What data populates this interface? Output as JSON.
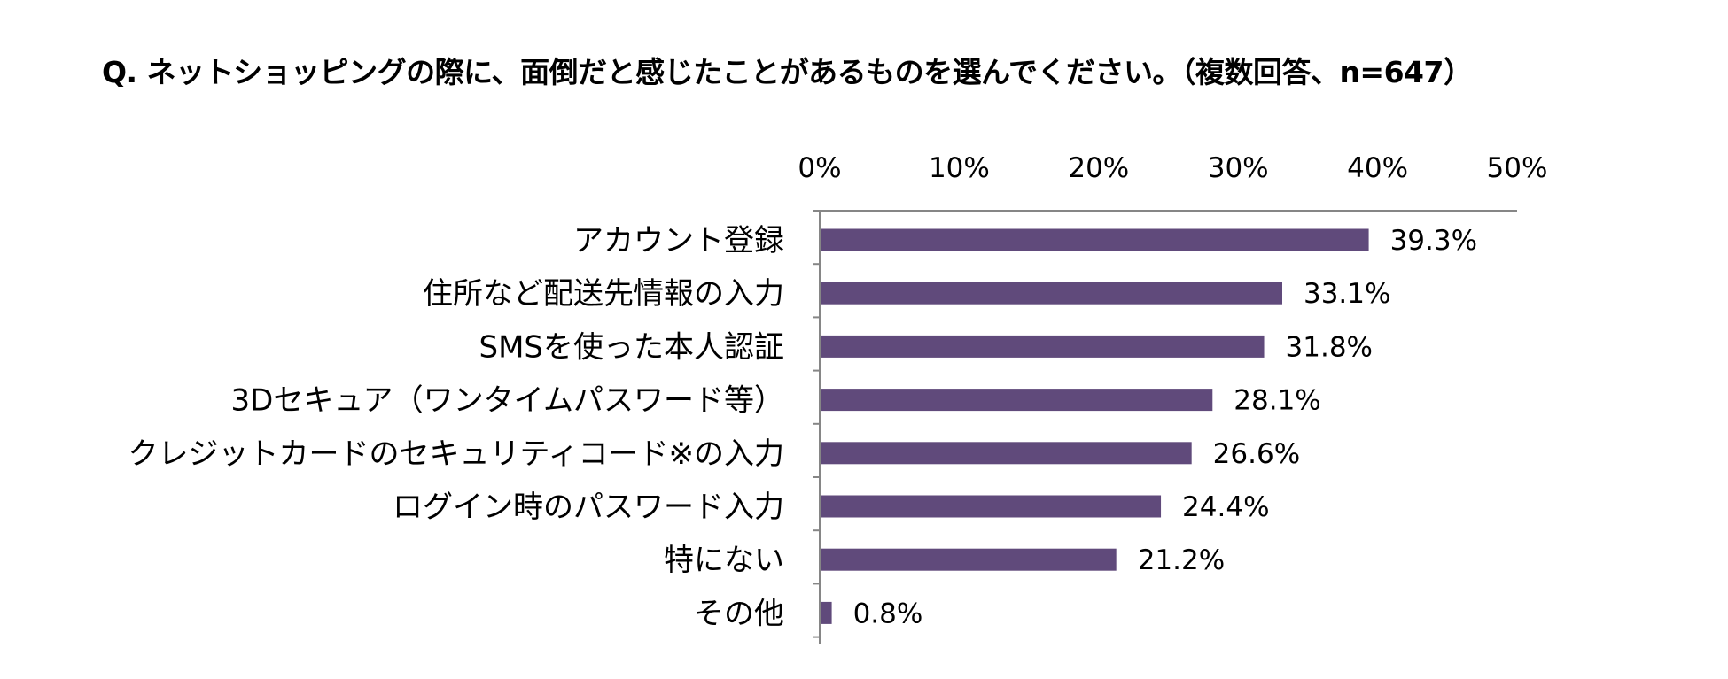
{
  "chart_data": {
    "type": "bar",
    "orientation": "horizontal",
    "title": "Q. ネットショッピングの際に、面倒だと感じたことがあるものを選んでください。（複数回答、n=647）",
    "xlabel": "",
    "ylabel": "",
    "xlim": [
      0,
      50
    ],
    "x_ticks": [
      "0%",
      "10%",
      "20%",
      "30%",
      "40%",
      "50%"
    ],
    "categories": [
      "アカウント登録",
      "住所など配送先情報の入力",
      "SMSを使った本人認証",
      "3Dセキュア（ワンタイムパスワード等）",
      "クレジットカードのセキュリティコード※の入力",
      "ログイン時のパスワード入力",
      "特にない",
      "その他"
    ],
    "values": [
      39.3,
      33.1,
      31.8,
      28.1,
      26.6,
      24.4,
      21.2,
      0.8
    ],
    "value_labels": [
      "39.3%",
      "33.1%",
      "31.8%",
      "28.1%",
      "26.6%",
      "24.4%",
      "21.2%",
      "0.8%"
    ],
    "bar_color": "#604a7b",
    "axis_color": "#868686",
    "axis_position": "top",
    "grid": false,
    "legend": "none"
  }
}
